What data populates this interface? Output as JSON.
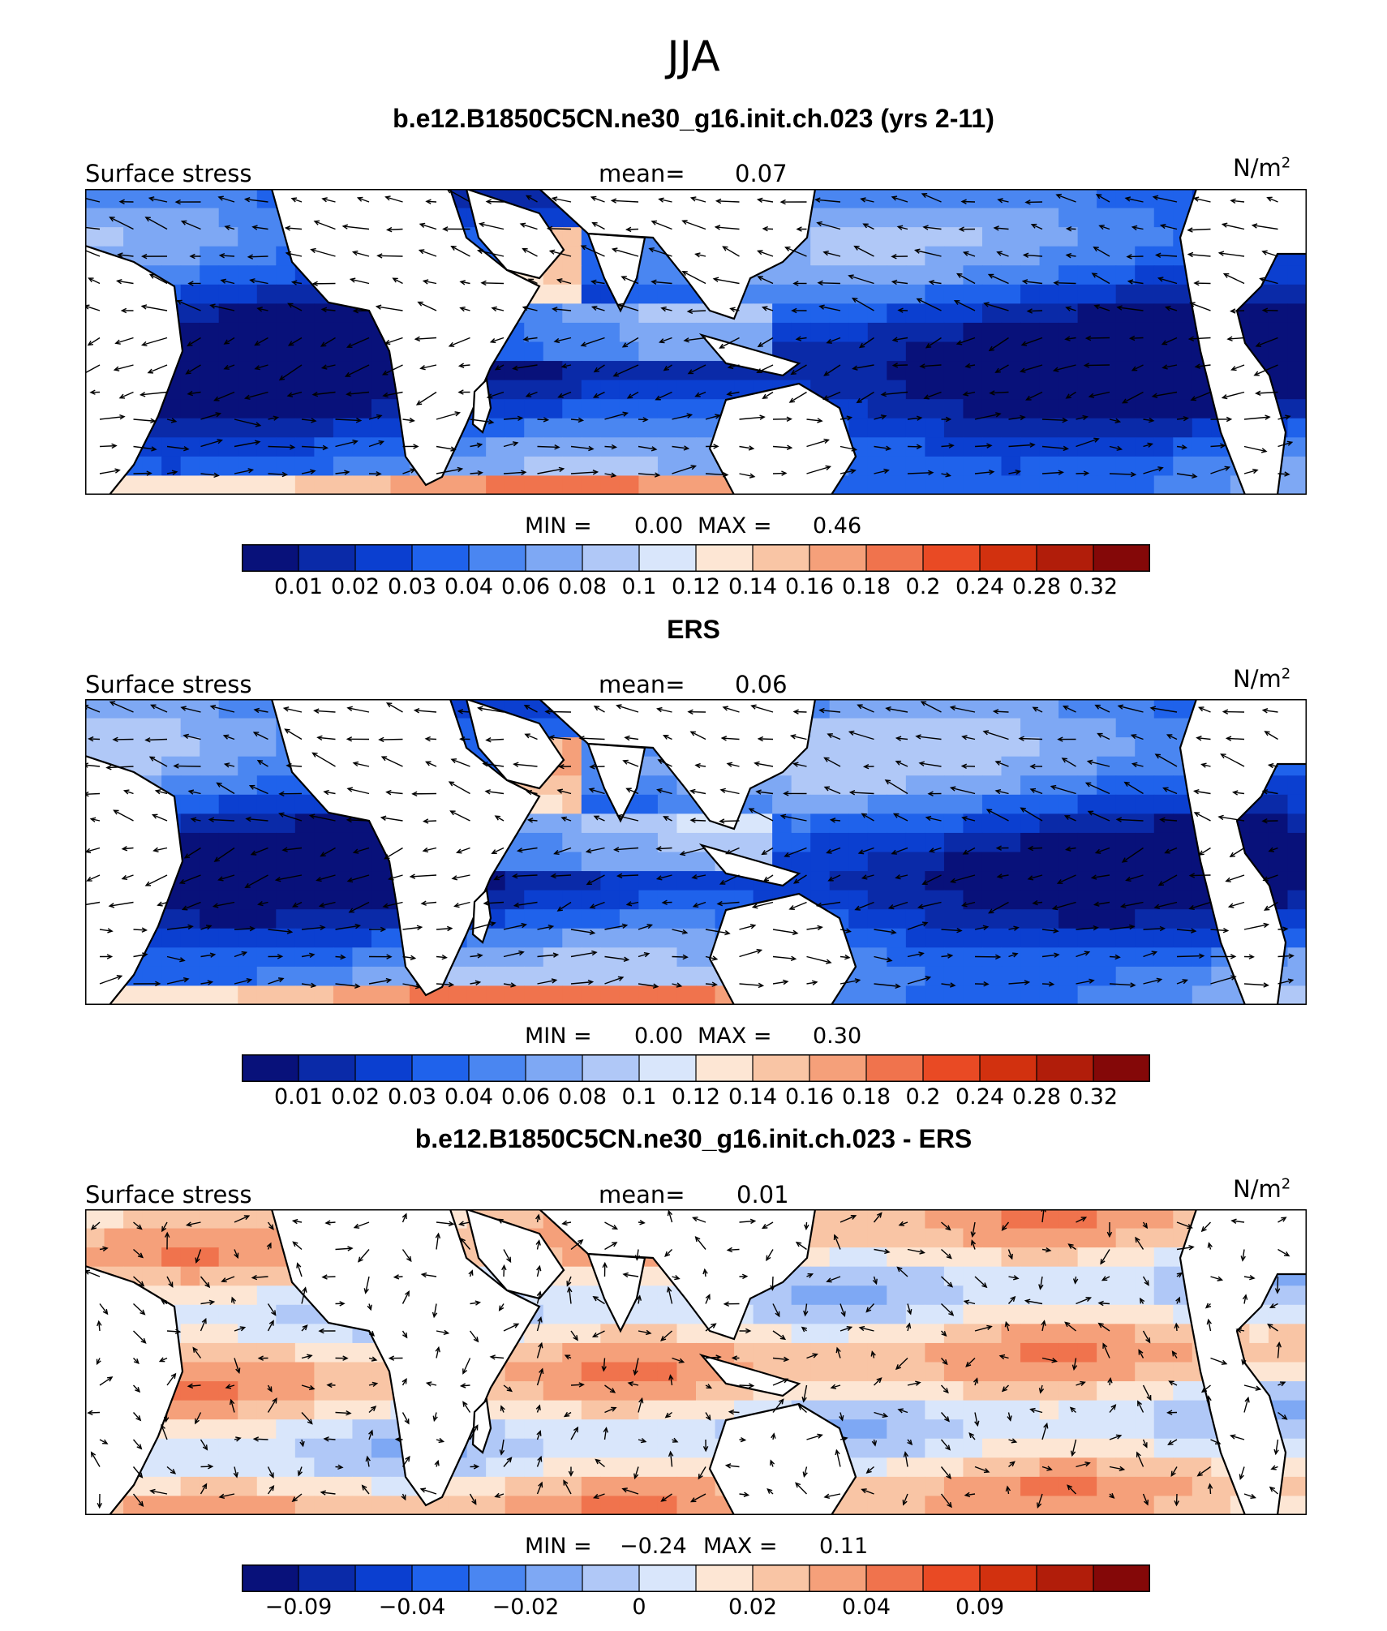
{
  "title": "JJA",
  "colors": {
    "levels": [
      "#08117a",
      "#0a2aa8",
      "#0b3fd0",
      "#1f62eb",
      "#4a86f1",
      "#7ea8f4",
      "#b0c8f7",
      "#d9e6fb",
      "#fde6d4",
      "#f9c5a5",
      "#f5a07a",
      "#f0734d",
      "#e94a24",
      "#d2310f",
      "#b11d0a",
      "#840808"
    ],
    "land": "#ffffff",
    "coast": "#000000"
  },
  "panels": [
    {
      "title": "b.e12.B1850C5CN.ne30_g16.init.ch.023 (yrs 2-11)",
      "left_label": "Surface stress",
      "mean_label": "mean=",
      "mean_value": "0.07",
      "units": "N/m",
      "units_sup": "2",
      "min_label": "MIN =",
      "min_value": "0.00",
      "max_label": "MAX =",
      "max_value": "0.46",
      "colorbar_ticks": [
        "0.01",
        "0.02",
        "0.03",
        "0.04",
        "0.06",
        "0.08",
        "0.1",
        "0.12",
        "0.14",
        "0.16",
        "0.18",
        "0.2",
        "0.24",
        "0.28",
        "0.32"
      ]
    },
    {
      "title": "ERS",
      "left_label": "Surface stress",
      "mean_label": "mean=",
      "mean_value": "0.06",
      "units": "N/m",
      "units_sup": "2",
      "min_label": "MIN =",
      "min_value": "0.00",
      "max_label": "MAX =",
      "max_value": "0.30",
      "colorbar_ticks": [
        "0.01",
        "0.02",
        "0.03",
        "0.04",
        "0.06",
        "0.08",
        "0.1",
        "0.12",
        "0.14",
        "0.16",
        "0.18",
        "0.2",
        "0.24",
        "0.28",
        "0.32"
      ]
    },
    {
      "title": "b.e12.B1850C5CN.ne30_g16.init.ch.023 - ERS",
      "left_label": "Surface stress",
      "mean_label": "mean=",
      "mean_value": "0.01",
      "units": "N/m",
      "units_sup": "2",
      "min_label": "MIN =",
      "min_value": "−0.24",
      "max_label": "MAX =",
      "max_value": "0.11",
      "colorbar_ticks": [
        "−0.09",
        "",
        "−0.04",
        "",
        "−0.02",
        "",
        "0",
        "",
        "0.02",
        "",
        "0.04",
        "",
        "0.09",
        "",
        "",
        ""
      ]
    }
  ],
  "chart_data": [
    {
      "type": "heatmap",
      "title": "b.e12.B1850C5CN.ne30_g16.init.ch.023 (yrs 2-11)",
      "variable": "Surface stress",
      "units": "N/m2",
      "mean": 0.07,
      "min": 0.0,
      "max": 0.46,
      "contour_levels": [
        0.01,
        0.02,
        0.03,
        0.04,
        0.06,
        0.08,
        0.1,
        0.12,
        0.14,
        0.16,
        0.18,
        0.2,
        0.24,
        0.28,
        0.32
      ],
      "overlay": "wind stress vectors"
    },
    {
      "type": "heatmap",
      "title": "ERS",
      "variable": "Surface stress",
      "units": "N/m2",
      "mean": 0.06,
      "min": 0.0,
      "max": 0.3,
      "contour_levels": [
        0.01,
        0.02,
        0.03,
        0.04,
        0.06,
        0.08,
        0.1,
        0.12,
        0.14,
        0.16,
        0.18,
        0.2,
        0.24,
        0.28,
        0.32
      ],
      "overlay": "wind stress vectors"
    },
    {
      "type": "heatmap",
      "title": "b.e12.B1850C5CN.ne30_g16.init.ch.023 - ERS",
      "variable": "Surface stress",
      "units": "N/m2",
      "mean": 0.01,
      "min": -0.24,
      "max": 0.11,
      "colorbar_tick_labels": [
        -0.09,
        -0.04,
        -0.02,
        0,
        0.02,
        0.04,
        0.09
      ],
      "overlay": "wind stress difference vectors"
    }
  ]
}
